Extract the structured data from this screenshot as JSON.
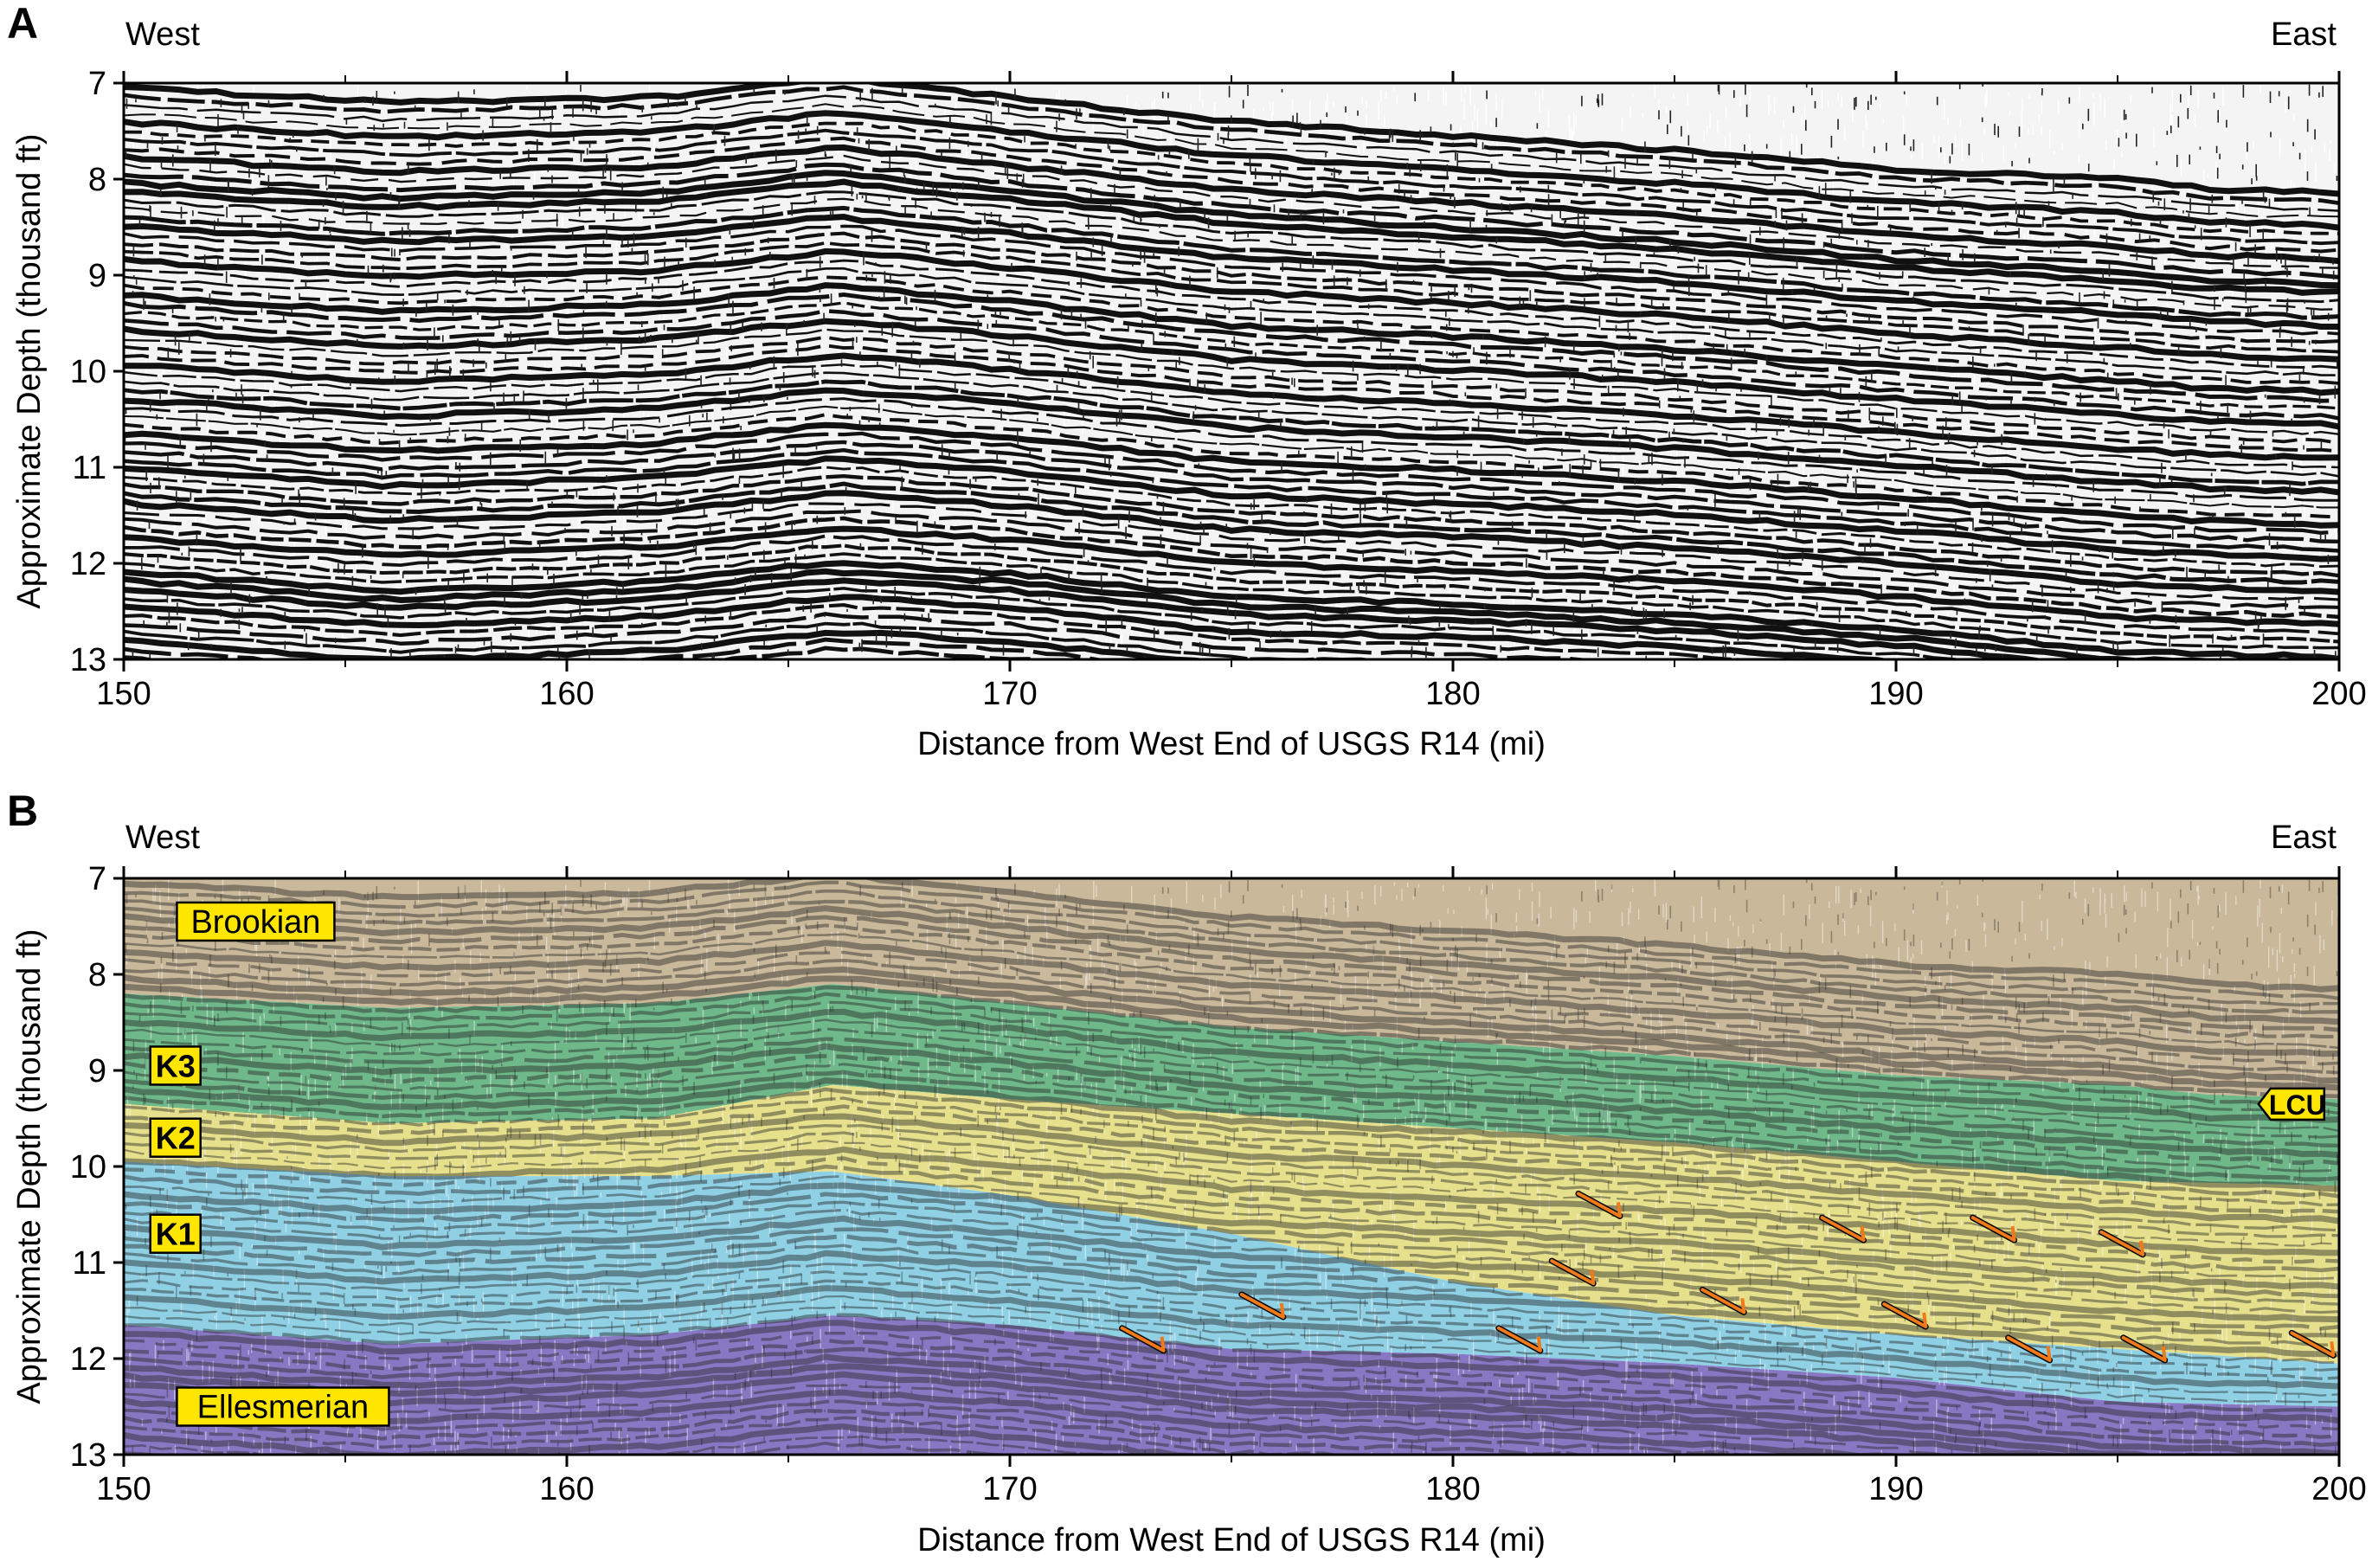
{
  "figure": {
    "panels": [
      "A",
      "B"
    ]
  },
  "colors": {
    "brookian": "#c9b89a",
    "k3": "#6fb88a",
    "k2": "#e6e08c",
    "k1": "#8fd0e4",
    "ellesmerian": "#8878c4",
    "label_bg": "#ffe600",
    "fault_arrow": "#f07a1a",
    "seismic_dark": "#111111",
    "seismic_light": "#ffffff"
  },
  "chart_data": [
    {
      "panel_label": "A",
      "type": "heatmap",
      "description_text": "",
      "side_labels": {
        "left": "West",
        "right": "East"
      },
      "xlabel": "Distance from West End of USGS R14 (mi)",
      "ylabel": "Approximate Depth (thousand ft)",
      "xlim": [
        150,
        200
      ],
      "ylim": [
        13,
        7
      ],
      "xticks": [
        150,
        160,
        170,
        180,
        190,
        200
      ],
      "yticks": [
        7,
        8,
        9,
        10,
        11,
        12,
        13
      ],
      "grid": false
    },
    {
      "panel_label": "B",
      "type": "heatmap",
      "side_labels": {
        "left": "West",
        "right": "East"
      },
      "xlabel": "Distance from West End of USGS R14 (mi)",
      "ylabel": "Approximate Depth (thousand ft)",
      "xlim": [
        150,
        200
      ],
      "ylim": [
        13,
        7
      ],
      "xticks": [
        150,
        160,
        170,
        180,
        190,
        200
      ],
      "yticks": [
        7,
        8,
        9,
        10,
        11,
        12,
        13
      ],
      "grid": false,
      "units": [
        {
          "name": "Brookian",
          "color": "#c9b89a"
        },
        {
          "name": "K3",
          "color": "#6fb88a"
        },
        {
          "name": "K2",
          "color": "#e6e08c"
        },
        {
          "name": "K1",
          "color": "#8fd0e4"
        },
        {
          "name": "Ellesmerian",
          "color": "#8878c4"
        }
      ],
      "horizons": [
        {
          "name": "LCU",
          "x": [
            150,
            156,
            162,
            166,
            170,
            175,
            180,
            185,
            190,
            195,
            197,
            200
          ],
          "y": [
            8.2,
            8.35,
            8.3,
            8.1,
            8.3,
            8.55,
            8.7,
            8.85,
            9.05,
            9.15,
            9.25,
            9.3
          ]
        },
        {
          "name": "K3-K2",
          "x": [
            150,
            156,
            162,
            166,
            170,
            175,
            180,
            185,
            190,
            195,
            200
          ],
          "y": [
            9.35,
            9.55,
            9.5,
            9.15,
            9.3,
            9.45,
            9.6,
            9.75,
            9.95,
            10.15,
            10.2
          ]
        },
        {
          "name": "K2-K1",
          "x": [
            150,
            156,
            162,
            166,
            170,
            175,
            180,
            185,
            190,
            195,
            200
          ],
          "y": [
            9.95,
            10.1,
            10.1,
            10.05,
            10.3,
            10.7,
            11.2,
            11.55,
            11.75,
            11.9,
            12.05
          ]
        },
        {
          "name": "K1-Ellesmerian",
          "x": [
            150,
            156,
            162,
            166,
            170,
            175,
            180,
            185,
            190,
            195,
            200
          ],
          "y": [
            11.65,
            11.85,
            11.75,
            11.55,
            11.65,
            11.9,
            11.95,
            12.05,
            12.2,
            12.45,
            12.5
          ]
        }
      ],
      "labels": [
        {
          "text": "Brookian",
          "x": 151.2,
          "y": 7.45
        },
        {
          "text": "K3",
          "x": 150.6,
          "y": 8.95
        },
        {
          "text": "K2",
          "x": 150.6,
          "y": 9.7
        },
        {
          "text": "K1",
          "x": 150.6,
          "y": 10.7
        },
        {
          "text": "Ellesmerian",
          "x": 151.2,
          "y": 12.5
        },
        {
          "text": "LCU",
          "x": 199.0,
          "y": 9.35
        }
      ],
      "fault_markers": [
        {
          "x": 173,
          "y": 11.8
        },
        {
          "x": 175.7,
          "y": 11.45
        },
        {
          "x": 181.5,
          "y": 11.8
        },
        {
          "x": 182.7,
          "y": 11.1
        },
        {
          "x": 183.3,
          "y": 10.4
        },
        {
          "x": 186.1,
          "y": 11.4
        },
        {
          "x": 188.8,
          "y": 10.65
        },
        {
          "x": 190.2,
          "y": 11.55
        },
        {
          "x": 192.2,
          "y": 10.65
        },
        {
          "x": 193.0,
          "y": 11.9
        },
        {
          "x": 195.1,
          "y": 10.8
        },
        {
          "x": 195.6,
          "y": 11.9
        },
        {
          "x": 199.4,
          "y": 11.85
        }
      ]
    }
  ]
}
